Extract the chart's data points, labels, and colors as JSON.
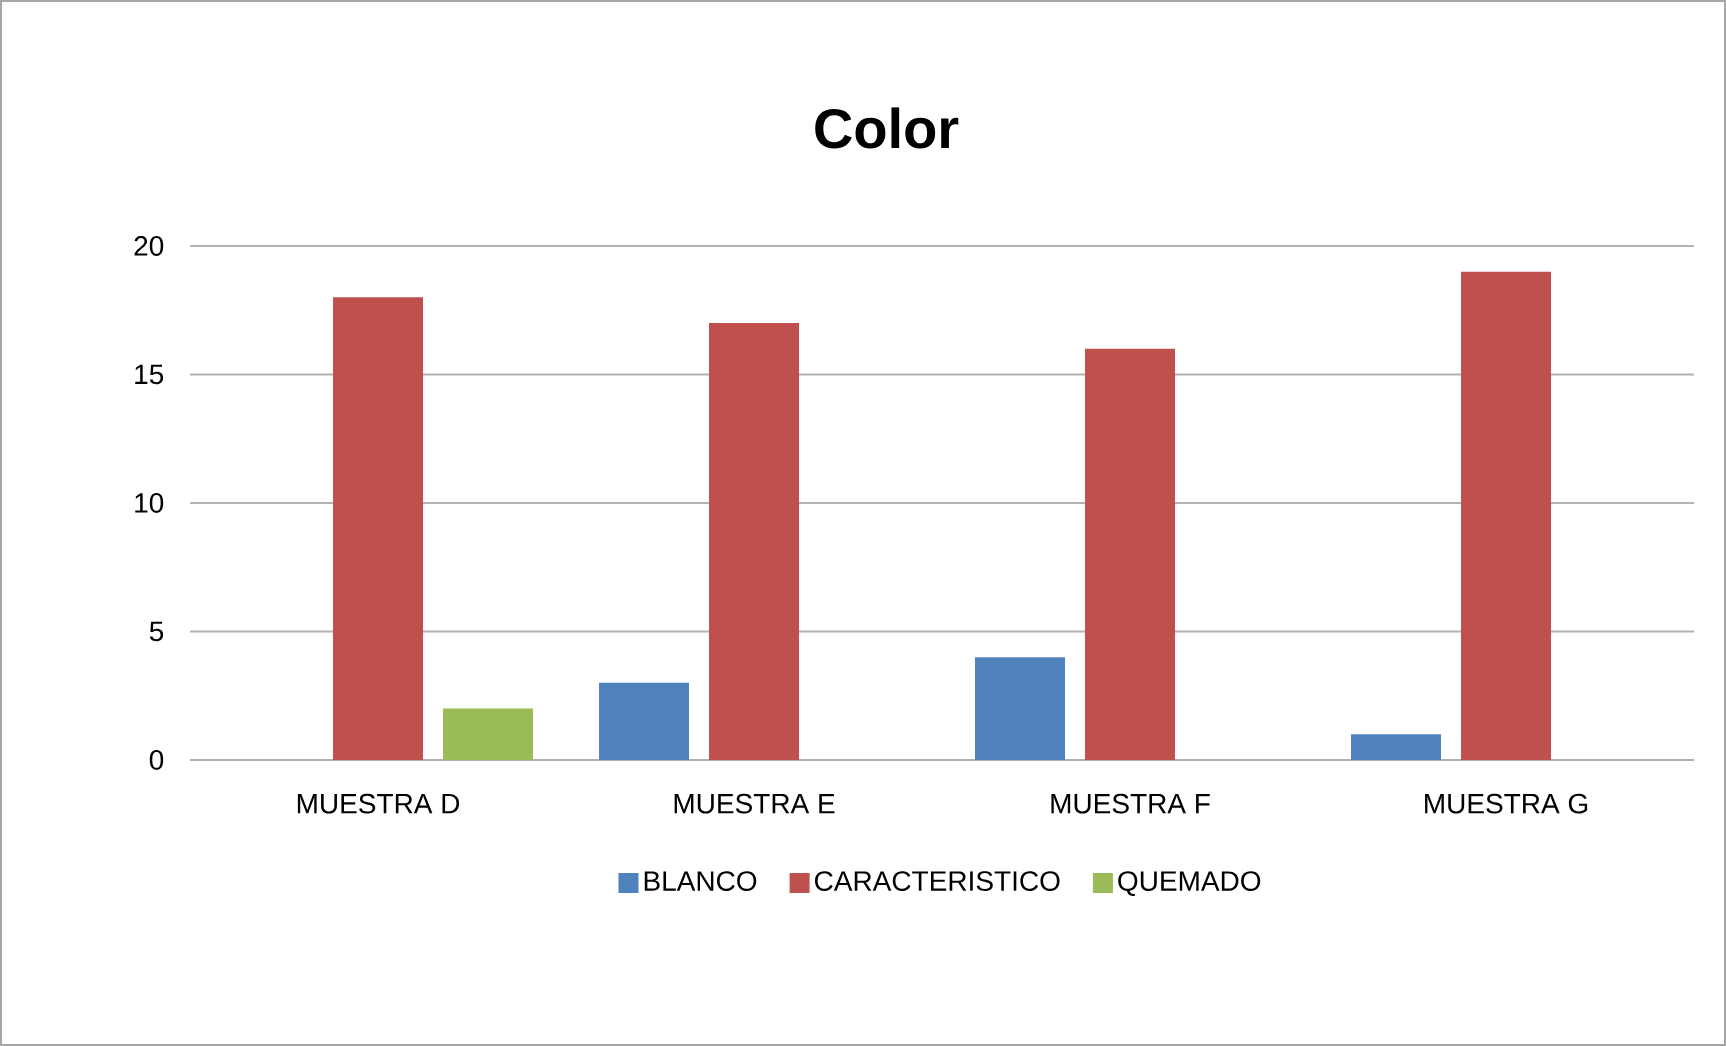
{
  "chart_data": {
    "type": "bar",
    "title": "Color",
    "categories": [
      "MUESTRA D",
      "MUESTRA E",
      "MUESTRA F",
      "MUESTRA G"
    ],
    "series": [
      {
        "name": "BLANCO",
        "color": "#4f81bd",
        "values": [
          0,
          3,
          4,
          1
        ]
      },
      {
        "name": "CARACTERISTICO",
        "color": "#c0504d",
        "values": [
          18,
          17,
          16,
          19
        ]
      },
      {
        "name": "QUEMADO",
        "color": "#9bbb59",
        "values": [
          2,
          0,
          0,
          0
        ]
      }
    ],
    "ylim": [
      0,
      20
    ],
    "yticks": [
      0,
      5,
      10,
      15,
      20
    ],
    "grid": "y",
    "legend": "bottom"
  }
}
